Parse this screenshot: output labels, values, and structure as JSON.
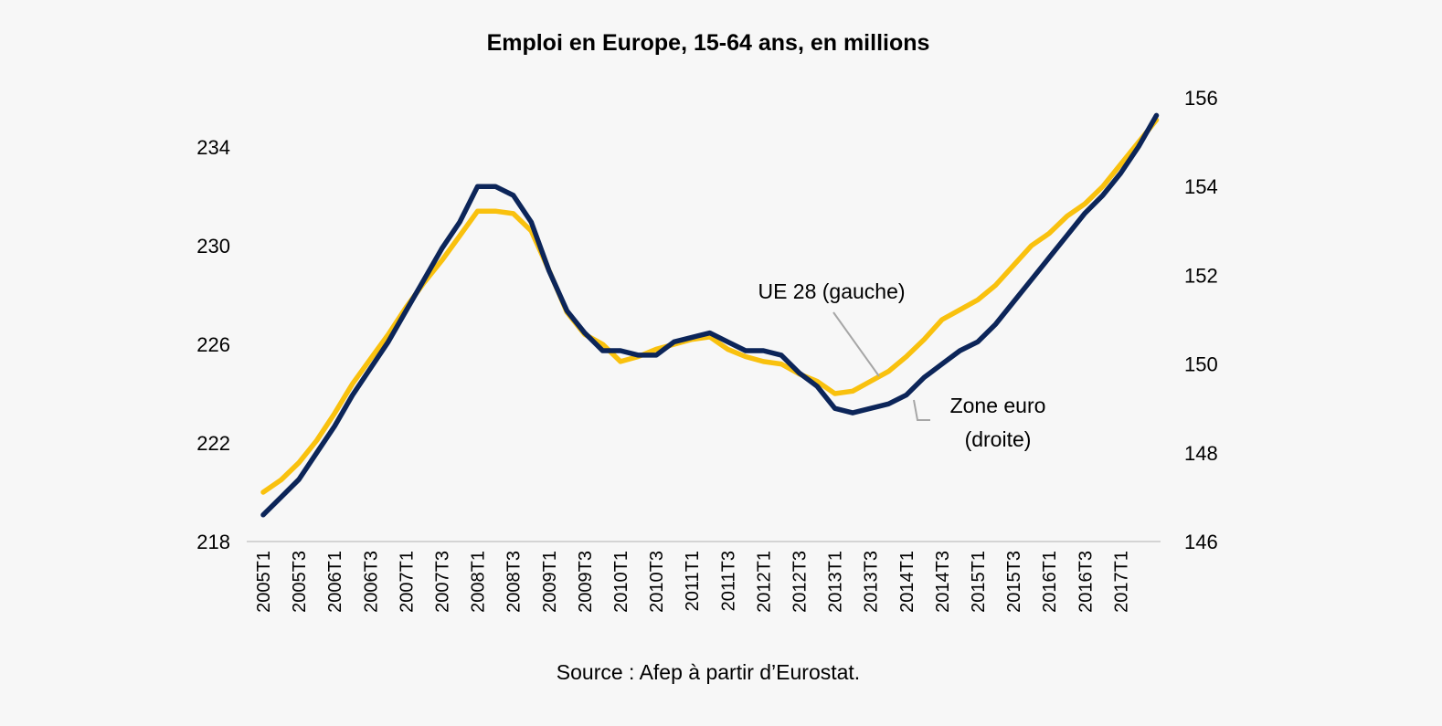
{
  "chart_data": {
    "type": "line",
    "title": "Emploi en Europe, 15-64 ans, en millions",
    "source": "Source : Afep à partir d’Eurostat.",
    "annotations": {
      "eu28": "UE 28 (gauche)",
      "euro_line1": "Zone euro",
      "euro_line2": "(droite)"
    },
    "y_left": {
      "ticks": [
        "218",
        "222",
        "226",
        "230",
        "234"
      ],
      "range": [
        218,
        236
      ]
    },
    "y_right": {
      "ticks": [
        "146",
        "148",
        "150",
        "152",
        "154",
        "156"
      ],
      "range": [
        146,
        156
      ]
    },
    "x_tick_labels": [
      "2005T1",
      "2005T3",
      "2006T1",
      "2006T3",
      "2007T1",
      "2007T3",
      "2008T1",
      "2008T3",
      "2009T1",
      "2009T3",
      "2010T1",
      "2010T3",
      "2011T1",
      "2011T3",
      "2012T1",
      "2012T3",
      "2013T1",
      "2013T3",
      "2014T1",
      "2014T3",
      "2015T1",
      "2015T3",
      "2016T1",
      "2016T3",
      "2017T1"
    ],
    "x_periods": [
      "2005T1",
      "2005T2",
      "2005T3",
      "2005T4",
      "2006T1",
      "2006T2",
      "2006T3",
      "2006T4",
      "2007T1",
      "2007T2",
      "2007T3",
      "2007T4",
      "2008T1",
      "2008T2",
      "2008T3",
      "2008T4",
      "2009T1",
      "2009T2",
      "2009T3",
      "2009T4",
      "2010T1",
      "2010T2",
      "2010T3",
      "2010T4",
      "2011T1",
      "2011T2",
      "2011T3",
      "2011T4",
      "2012T1",
      "2012T2",
      "2012T3",
      "2012T4",
      "2013T1",
      "2013T2",
      "2013T3",
      "2013T4",
      "2014T1",
      "2014T2",
      "2014T3",
      "2014T4",
      "2015T1",
      "2015T2",
      "2015T3",
      "2015T4",
      "2016T1",
      "2016T2",
      "2016T3",
      "2016T4",
      "2017T1",
      "2017T2",
      "2017T3"
    ],
    "series": [
      {
        "name": "UE 28",
        "axis": "left",
        "color": "#f9c10e",
        "values": [
          220.0,
          220.5,
          221.2,
          222.1,
          223.2,
          224.4,
          225.4,
          226.4,
          227.5,
          228.5,
          229.4,
          230.4,
          231.4,
          231.4,
          231.3,
          230.6,
          229.0,
          227.3,
          226.4,
          226.0,
          225.3,
          225.5,
          225.8,
          226.0,
          226.2,
          226.3,
          225.8,
          225.5,
          225.3,
          225.2,
          224.8,
          224.5,
          224.0,
          224.1,
          224.5,
          224.9,
          225.5,
          226.2,
          227.0,
          227.4,
          227.8,
          228.4,
          229.2,
          230.0,
          230.5,
          231.2,
          231.7,
          232.4,
          233.3,
          234.2,
          235.1
        ]
      },
      {
        "name": "Zone euro",
        "axis": "right",
        "color": "#0c2559",
        "values": [
          146.6,
          147.0,
          147.4,
          148.0,
          148.6,
          149.3,
          149.9,
          150.5,
          151.2,
          151.9,
          152.6,
          153.2,
          154.0,
          154.0,
          153.8,
          153.2,
          152.1,
          151.2,
          150.7,
          150.3,
          150.3,
          150.2,
          150.2,
          150.5,
          150.6,
          150.7,
          150.5,
          150.3,
          150.3,
          150.2,
          149.8,
          149.5,
          149.0,
          148.9,
          149.0,
          149.1,
          149.3,
          149.7,
          150.0,
          150.3,
          150.5,
          150.9,
          151.4,
          151.9,
          152.4,
          152.9,
          153.4,
          153.8,
          154.3,
          154.9,
          155.6
        ]
      }
    ],
    "grid": false,
    "legend": "none"
  }
}
